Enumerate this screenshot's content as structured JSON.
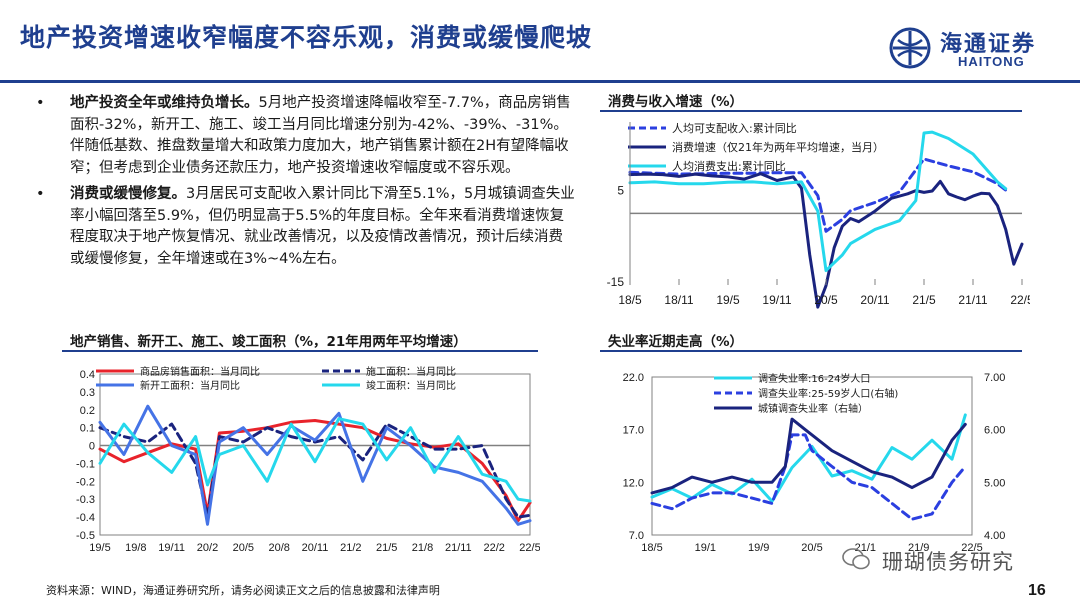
{
  "header": {
    "title": "地产投资增速收窄幅度不容乐观，消费或缓慢爬坡",
    "logo_cn": "海通证券",
    "logo_en": "HAITONG"
  },
  "bullets": [
    {
      "lead": "地产投资全年或维持负增长。",
      "body": "5月地产投资增速降幅收窄至-7.7%，商品房销售面积-32%，新开工、施工、竣工当月同比增速分别为-42%、-39%、-31%。伴随低基数、推盘数量增大和政策力度加大，地产销售累计额在2H有望降幅收窄；但考虑到企业债务还款压力，地产投资增速收窄幅度或不容乐观。"
    },
    {
      "lead": "消费或缓慢修复。",
      "body": "3月居民可支配收入累计同比下滑至5.1%，5月城镇调查失业率小幅回落至5.9%，但仍明显高于5.5%的年度目标。全年来看消费增速恢复程度取决于地产恢复情况、就业改善情况，以及疫情改善情况，预计后续消费或缓慢修复，全年增速或在3%~4%左右。"
    }
  ],
  "colors": {
    "navy": "#1a237e",
    "blue": "#2b3fe0",
    "cyan": "#25d8ec",
    "red": "#e8232b",
    "royal": "#4573e6",
    "theme": "#1f3f8f"
  },
  "charts": [
    {
      "panel_title": "消费与收入增速（%）",
      "chart_data": {
        "type": "line",
        "x_ticks": [
          "18/5",
          "18/11",
          "19/5",
          "19/11",
          "20/5",
          "20/11",
          "21/5",
          "21/11",
          "22/5"
        ],
        "y_ticks": [
          "5",
          "-15"
        ],
        "ylim": [
          -15,
          20
        ],
        "series": [
          {
            "name": "人均可支配收入:累计同比",
            "style": "dash",
            "color": "blue",
            "x": [
              0,
              3,
              6,
              9,
              12,
              15,
              18,
              21,
              23,
              24,
              26,
              27,
              30,
              33,
              36,
              39,
              42,
              45,
              46
            ],
            "y": [
              9.0,
              8.8,
              8.6,
              8.7,
              8.8,
              8.8,
              8.9,
              8.9,
              3.9,
              -3.9,
              -1.3,
              0.6,
              2.4,
              4.7,
              11.9,
              10.4,
              9.1,
              6.5,
              5.1
            ]
          },
          {
            "name": "消费增速（仅21年为两年平均增速，当月）",
            "style": "solid",
            "color": "navy",
            "x": [
              0,
              2,
              4,
              6,
              8,
              10,
              12,
              14,
              16,
              18,
              20,
              21,
              22,
              23,
              24,
              25,
              26,
              27,
              28,
              30,
              32,
              34,
              35,
              36,
              37,
              38,
              39,
              40,
              41,
              42,
              43,
              44,
              45,
              46,
              47,
              48
            ],
            "y": [
              8.5,
              8.6,
              8.5,
              8.1,
              8.6,
              8.2,
              8.0,
              7.5,
              8.7,
              7.2,
              8.0,
              5.5,
              -9.0,
              -20.5,
              -15.8,
              -7.5,
              -2.8,
              -1.1,
              -1.8,
              0.5,
              3.3,
              4.3,
              5.0,
              4.6,
              4.9,
              7.0,
              4.3,
              3.6,
              3.0,
              3.8,
              4.4,
              4.3,
              1.7,
              -3.5,
              -11.1,
              -6.7
            ]
          },
          {
            "name": "人均消费支出:累计同比",
            "style": "solid",
            "color": "cyan",
            "x": [
              0,
              3,
              6,
              9,
              12,
              15,
              18,
              21,
              23,
              24,
              26,
              27,
              30,
              33,
              35,
              36,
              37,
              39,
              42,
              45,
              46
            ],
            "y": [
              6.7,
              6.9,
              6.5,
              6.5,
              6.8,
              6.9,
              6.5,
              6.9,
              0.5,
              -12.5,
              -9.1,
              -6.6,
              -3.5,
              -1.6,
              2.8,
              17.6,
              17.8,
              16.4,
              13.0,
              6.9,
              5.4
            ]
          }
        ]
      }
    },
    {
      "panel_title": "地产销售、新开工、施工、竣工面积（%，21年用两年平均增速）",
      "chart_data": {
        "type": "line",
        "x_ticks": [
          "19/5",
          "19/8",
          "19/11",
          "20/2",
          "20/5",
          "20/8",
          "20/11",
          "21/2",
          "21/5",
          "21/8",
          "21/11",
          "22/2",
          "22/5"
        ],
        "y_ticks": [
          "0.4",
          "0.3",
          "0.2",
          "0.1",
          "0",
          "-0.1",
          "-0.2",
          "-0.3",
          "-0.4",
          "-0.5"
        ],
        "ylim": [
          -0.5,
          0.4
        ],
        "series": [
          {
            "name": "商品房销售面积：当月同比",
            "style": "solid",
            "color": "red",
            "x": [
              0,
              2,
              4,
              6,
              8,
              9,
              10,
              12,
              14,
              16,
              18,
              20,
              22,
              24,
              26,
              28,
              30,
              32,
              34,
              35,
              36
            ],
            "y": [
              -0.02,
              -0.09,
              -0.04,
              0.01,
              -0.02,
              -0.38,
              0.07,
              0.08,
              0.1,
              0.13,
              0.14,
              0.12,
              0.1,
              0.04,
              0.01,
              -0.01,
              0.01,
              -0.1,
              -0.28,
              -0.42,
              -0.32
            ]
          },
          {
            "name": "施工面积：当月同比",
            "style": "dash",
            "color": "navy",
            "x": [
              0,
              2,
              4,
              6,
              8,
              9,
              10,
              12,
              14,
              16,
              18,
              20,
              22,
              24,
              26,
              28,
              30,
              32,
              34,
              35,
              36
            ],
            "y": [
              0.1,
              0.05,
              0.02,
              0.12,
              -0.1,
              -0.4,
              0.05,
              0.02,
              0.1,
              0.05,
              0.02,
              0.05,
              -0.08,
              0.12,
              0.05,
              -0.02,
              -0.02,
              0.0,
              -0.3,
              -0.4,
              -0.39
            ]
          },
          {
            "name": "新开工面积：当月同比",
            "style": "solid",
            "color": "royal",
            "x": [
              0,
              2,
              4,
              6,
              8,
              9,
              10,
              12,
              14,
              16,
              18,
              20,
              22,
              24,
              26,
              28,
              30,
              32,
              34,
              35,
              36
            ],
            "y": [
              0.13,
              -0.05,
              0.22,
              0.0,
              -0.05,
              -0.44,
              0.02,
              0.1,
              -0.05,
              0.11,
              0.03,
              0.18,
              -0.2,
              0.1,
              0.0,
              -0.12,
              -0.15,
              -0.2,
              -0.35,
              -0.44,
              -0.42
            ]
          },
          {
            "name": "竣工面积：当月同比",
            "style": "solid",
            "color": "cyan",
            "x": [
              0,
              2,
              4,
              6,
              8,
              9,
              10,
              12,
              14,
              16,
              18,
              20,
              22,
              24,
              26,
              28,
              30,
              32,
              34,
              35,
              36
            ],
            "y": [
              -0.1,
              0.12,
              -0.04,
              -0.15,
              0.05,
              -0.22,
              -0.05,
              0.0,
              -0.2,
              0.12,
              -0.09,
              0.15,
              0.12,
              -0.08,
              0.1,
              -0.15,
              0.05,
              -0.16,
              -0.2,
              -0.3,
              -0.31
            ]
          }
        ]
      }
    },
    {
      "panel_title": "失业率近期走高（%）",
      "chart_data": {
        "type": "line",
        "x_ticks": [
          "18/5",
          "19/1",
          "19/9",
          "20/5",
          "21/1",
          "21/9",
          "22/5"
        ],
        "y_ticks_left": [
          "22.0",
          "17.0",
          "12.0",
          "7.0"
        ],
        "y_ticks_right": [
          "7.00",
          "6.00",
          "5.00",
          "4.00"
        ],
        "ylim_left": [
          7,
          22
        ],
        "ylim_right": [
          4,
          7
        ],
        "series": [
          {
            "name": "调查失业率:16-24岁人口",
            "style": "solid",
            "color": "cyan",
            "axis": "left",
            "x": [
              0,
              3,
              6,
              9,
              12,
              15,
              18,
              21,
              24,
              27,
              30,
              33,
              36,
              39,
              42,
              45,
              47
            ],
            "y": [
              10.6,
              11.4,
              10.5,
              11.8,
              10.9,
              12.3,
              10.2,
              13.4,
              15.4,
              12.6,
              13.1,
              12.3,
              15.3,
              14.2,
              16.0,
              14.2,
              18.4
            ]
          },
          {
            "name": "调查失业率:25-59岁人口(右轴)",
            "style": "dash",
            "color": "blue",
            "axis": "right",
            "x": [
              0,
              3,
              6,
              9,
              12,
              15,
              18,
              20,
              21,
              23,
              24,
              27,
              30,
              33,
              36,
              39,
              42,
              45,
              47
            ],
            "y": [
              4.6,
              4.5,
              4.7,
              4.8,
              4.8,
              4.7,
              4.6,
              5.3,
              5.9,
              5.9,
              5.6,
              5.3,
              5.0,
              4.9,
              4.6,
              4.3,
              4.4,
              5.0,
              5.3
            ]
          },
          {
            "name": "城镇调查失业率（右轴）",
            "style": "solid",
            "color": "navy",
            "axis": "right",
            "x": [
              0,
              3,
              6,
              9,
              12,
              15,
              18,
              20,
              21,
              23,
              24,
              27,
              30,
              33,
              36,
              39,
              42,
              45,
              47
            ],
            "y": [
              4.8,
              4.9,
              5.1,
              5.0,
              5.1,
              5.0,
              5.0,
              5.3,
              6.2,
              6.0,
              5.9,
              5.6,
              5.4,
              5.2,
              5.1,
              4.9,
              5.1,
              5.8,
              6.1
            ]
          }
        ]
      }
    }
  ],
  "footer": {
    "source": "资料来源：WIND，海通证券研究所，请务必阅读正文之后的信息披露和法律声明",
    "watermark": "珊瑚债务研究",
    "page": "16"
  }
}
